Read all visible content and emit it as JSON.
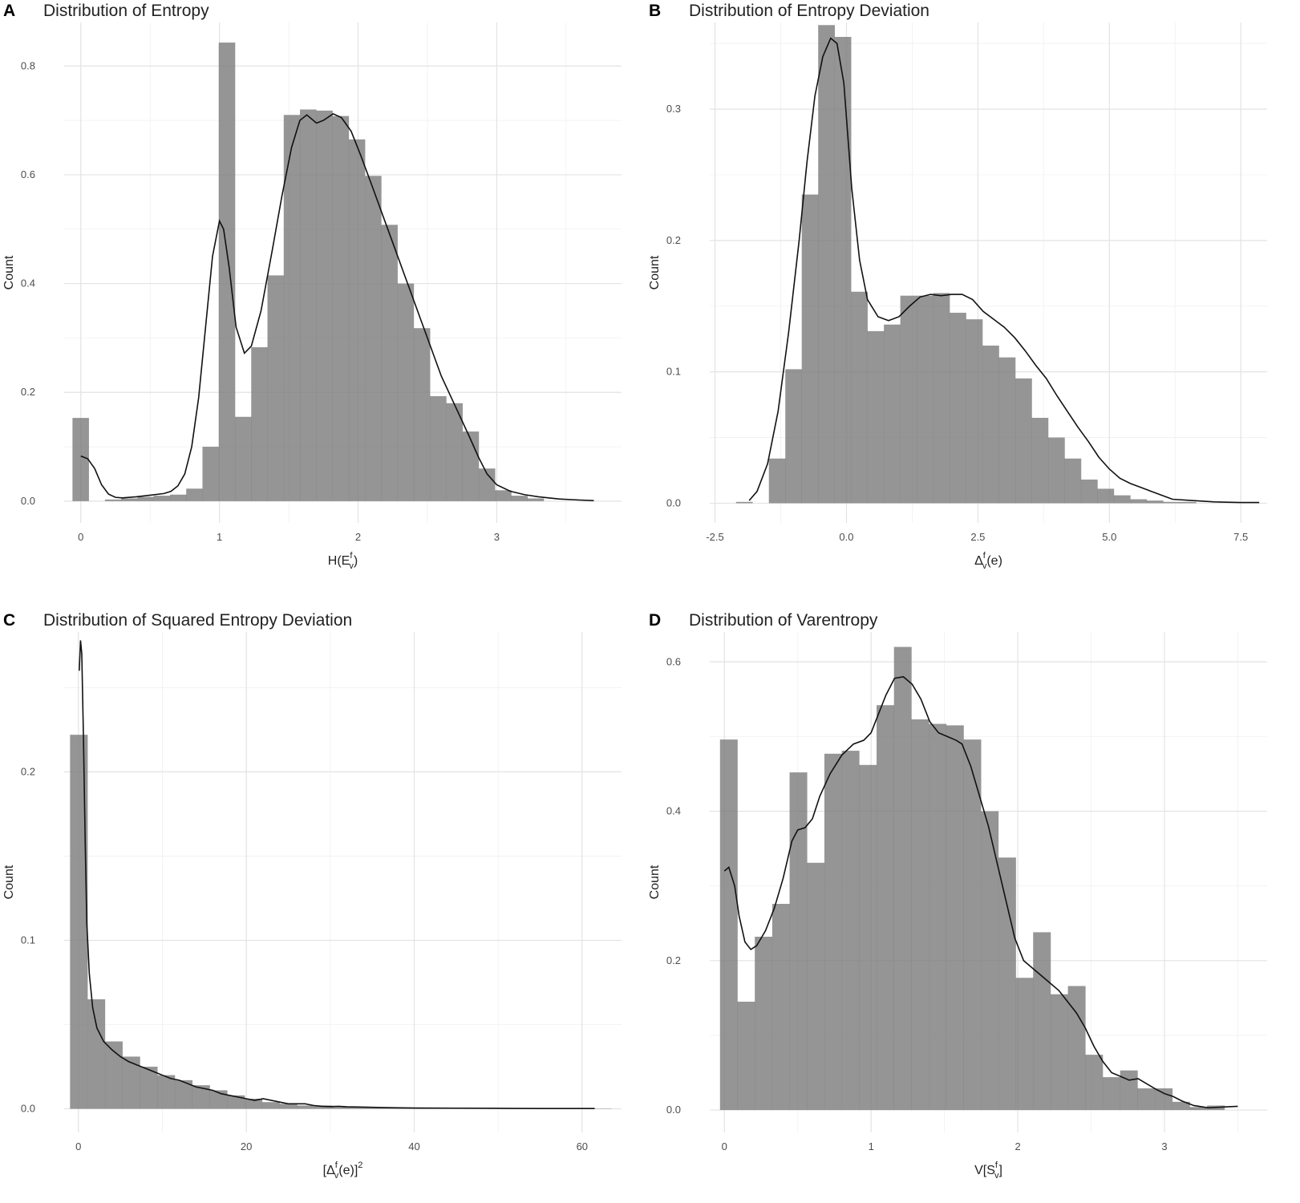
{
  "chart_data": [
    {
      "id": "A",
      "type": "bar",
      "letter": "A",
      "title": "Distribution of Entropy",
      "ylabel": "Count",
      "xlabel": {
        "base": "H(E",
        "sup": "f",
        "sub": "v",
        "tail": ")"
      },
      "xlim": [
        -0.12,
        3.9
      ],
      "ylim": [
        -0.04,
        0.88
      ],
      "xticks": [
        0,
        1,
        2,
        3
      ],
      "xtick_labels": [
        "0",
        "1",
        "2",
        "3"
      ],
      "yticks": [
        0.0,
        0.2,
        0.4,
        0.6,
        0.8
      ],
      "ytick_labels": [
        "0.0",
        "0.2",
        "0.4",
        "0.6",
        "0.8"
      ],
      "bin_start": -0.06,
      "bin_width": 0.1172,
      "values": [
        0.153,
        0,
        0.003,
        0.005,
        0.008,
        0.01,
        0.012,
        0.023,
        0.1,
        0.843,
        0.155,
        0.283,
        0.415,
        0.71,
        0.72,
        0.718,
        0.708,
        0.665,
        0.598,
        0.508,
        0.4,
        0.318,
        0.193,
        0.18,
        0.128,
        0.06,
        0.02,
        0.01,
        0.005
      ],
      "density": [
        [
          0,
          0.083
        ],
        [
          0.05,
          0.078
        ],
        [
          0.1,
          0.06
        ],
        [
          0.15,
          0.03
        ],
        [
          0.2,
          0.013
        ],
        [
          0.25,
          0.007
        ],
        [
          0.3,
          0.006
        ],
        [
          0.4,
          0.008
        ],
        [
          0.5,
          0.011
        ],
        [
          0.6,
          0.014
        ],
        [
          0.65,
          0.018
        ],
        [
          0.7,
          0.028
        ],
        [
          0.75,
          0.05
        ],
        [
          0.8,
          0.1
        ],
        [
          0.85,
          0.19
        ],
        [
          0.9,
          0.32
        ],
        [
          0.95,
          0.45
        ],
        [
          1.0,
          0.515
        ],
        [
          1.03,
          0.5
        ],
        [
          1.07,
          0.43
        ],
        [
          1.12,
          0.32
        ],
        [
          1.18,
          0.272
        ],
        [
          1.23,
          0.285
        ],
        [
          1.3,
          0.35
        ],
        [
          1.38,
          0.46
        ],
        [
          1.45,
          0.56
        ],
        [
          1.52,
          0.65
        ],
        [
          1.58,
          0.7
        ],
        [
          1.63,
          0.71
        ],
        [
          1.7,
          0.695
        ],
        [
          1.75,
          0.7
        ],
        [
          1.82,
          0.712
        ],
        [
          1.88,
          0.705
        ],
        [
          1.95,
          0.68
        ],
        [
          2.02,
          0.635
        ],
        [
          2.1,
          0.58
        ],
        [
          2.2,
          0.51
        ],
        [
          2.3,
          0.44
        ],
        [
          2.4,
          0.37
        ],
        [
          2.5,
          0.3
        ],
        [
          2.6,
          0.23
        ],
        [
          2.7,
          0.175
        ],
        [
          2.8,
          0.12
        ],
        [
          2.87,
          0.08
        ],
        [
          2.93,
          0.05
        ],
        [
          3.0,
          0.03
        ],
        [
          3.1,
          0.018
        ],
        [
          3.2,
          0.012
        ],
        [
          3.3,
          0.008
        ],
        [
          3.45,
          0.004
        ],
        [
          3.6,
          0.002
        ],
        [
          3.7,
          0.001
        ]
      ]
    },
    {
      "id": "B",
      "type": "bar",
      "letter": "B",
      "title": "Distribution of Entropy Deviation",
      "ylabel": "Count",
      "xlabel": {
        "base": "Δ",
        "sup": "f",
        "sub": "v",
        "tail": "(e)"
      },
      "xlim": [
        -2.6,
        8.0
      ],
      "ylim": [
        -0.015,
        0.366
      ],
      "xticks": [
        -2.5,
        0.0,
        2.5,
        5.0,
        7.5
      ],
      "xtick_labels": [
        "-2.5",
        "0.0",
        "2.5",
        "5.0",
        "7.5"
      ],
      "yticks": [
        0.0,
        0.1,
        0.2,
        0.3
      ],
      "ytick_labels": [
        "0.0",
        "0.1",
        "0.2",
        "0.3"
      ],
      "bin_start": -2.1,
      "bin_width": 0.3124,
      "values": [
        0.001,
        0.0,
        0.034,
        0.102,
        0.235,
        0.364,
        0.355,
        0.161,
        0.131,
        0.136,
        0.158,
        0.158,
        0.16,
        0.145,
        0.14,
        0.12,
        0.111,
        0.095,
        0.065,
        0.05,
        0.034,
        0.018,
        0.011,
        0.006,
        0.003,
        0.002,
        0.001,
        0.001,
        0.0
      ],
      "density": [
        [
          -1.85,
          0.002
        ],
        [
          -1.7,
          0.009
        ],
        [
          -1.5,
          0.03
        ],
        [
          -1.3,
          0.07
        ],
        [
          -1.1,
          0.13
        ],
        [
          -0.9,
          0.2
        ],
        [
          -0.75,
          0.26
        ],
        [
          -0.6,
          0.31
        ],
        [
          -0.45,
          0.34
        ],
        [
          -0.3,
          0.354
        ],
        [
          -0.18,
          0.35
        ],
        [
          -0.05,
          0.32
        ],
        [
          0.1,
          0.24
        ],
        [
          0.25,
          0.185
        ],
        [
          0.4,
          0.155
        ],
        [
          0.6,
          0.142
        ],
        [
          0.8,
          0.139
        ],
        [
          1.0,
          0.142
        ],
        [
          1.2,
          0.15
        ],
        [
          1.4,
          0.157
        ],
        [
          1.6,
          0.159
        ],
        [
          1.8,
          0.158
        ],
        [
          2.0,
          0.159
        ],
        [
          2.2,
          0.159
        ],
        [
          2.4,
          0.155
        ],
        [
          2.6,
          0.146
        ],
        [
          2.8,
          0.14
        ],
        [
          3.0,
          0.134
        ],
        [
          3.2,
          0.126
        ],
        [
          3.4,
          0.116
        ],
        [
          3.6,
          0.105
        ],
        [
          3.8,
          0.095
        ],
        [
          4.0,
          0.082
        ],
        [
          4.2,
          0.07
        ],
        [
          4.4,
          0.058
        ],
        [
          4.6,
          0.047
        ],
        [
          4.8,
          0.035
        ],
        [
          5.0,
          0.026
        ],
        [
          5.2,
          0.019
        ],
        [
          5.4,
          0.015
        ],
        [
          5.6,
          0.012
        ],
        [
          5.8,
          0.009
        ],
        [
          6.0,
          0.006
        ],
        [
          6.2,
          0.003
        ],
        [
          6.6,
          0.002
        ],
        [
          7.0,
          0.001
        ],
        [
          7.5,
          0.0005
        ],
        [
          7.85,
          0.0005
        ]
      ]
    },
    {
      "id": "C",
      "type": "bar",
      "letter": "C",
      "title": "Distribution of Squared Entropy Deviation",
      "ylabel": "Count",
      "xlabel": {
        "base": "[Δ",
        "sup": "f",
        "sub": "v",
        "tail": "(e)]",
        "tail_sup": "2"
      },
      "xlim": [
        -1.7,
        64.7
      ],
      "ylim": [
        -0.014,
        0.283
      ],
      "xticks": [
        0,
        20,
        40,
        60
      ],
      "xtick_labels": [
        "0",
        "20",
        "40",
        "60"
      ],
      "yticks": [
        0.0,
        0.1,
        0.2
      ],
      "ytick_labels": [
        "0.0",
        "0.1",
        "0.2"
      ],
      "bin_start": -1.0,
      "bin_width": 2.08,
      "values": [
        0.222,
        0.065,
        0.04,
        0.031,
        0.025,
        0.02,
        0.017,
        0.014,
        0.011,
        0.008,
        0.006,
        0.004,
        0.003,
        0.002,
        0.002,
        0.001,
        0.001,
        0.001,
        0.001,
        0.0005,
        0.0005,
        0.0005,
        0.0005,
        0.0005,
        0.0003,
        0.0003,
        0.0003,
        0.0003,
        0.0002,
        0.0002,
        0.0002
      ],
      "density": [
        [
          0.1,
          0.26
        ],
        [
          0.25,
          0.278
        ],
        [
          0.4,
          0.27
        ],
        [
          0.6,
          0.22
        ],
        [
          0.8,
          0.16
        ],
        [
          1.0,
          0.11
        ],
        [
          1.3,
          0.08
        ],
        [
          1.7,
          0.06
        ],
        [
          2.2,
          0.048
        ],
        [
          3,
          0.04
        ],
        [
          4,
          0.035
        ],
        [
          5,
          0.031
        ],
        [
          6,
          0.028
        ],
        [
          7,
          0.026
        ],
        [
          8,
          0.024
        ],
        [
          9,
          0.022
        ],
        [
          10,
          0.02
        ],
        [
          11,
          0.018
        ],
        [
          12,
          0.017
        ],
        [
          13,
          0.015
        ],
        [
          14,
          0.013
        ],
        [
          15,
          0.012
        ],
        [
          16,
          0.011
        ],
        [
          17,
          0.009
        ],
        [
          18,
          0.008
        ],
        [
          19,
          0.007
        ],
        [
          20,
          0.006
        ],
        [
          21,
          0.005
        ],
        [
          22,
          0.006
        ],
        [
          23,
          0.005
        ],
        [
          24,
          0.004
        ],
        [
          25,
          0.003
        ],
        [
          26,
          0.003
        ],
        [
          27,
          0.003
        ],
        [
          28,
          0.002
        ],
        [
          29,
          0.0015
        ],
        [
          30,
          0.0013
        ],
        [
          31,
          0.0015
        ],
        [
          32,
          0.0012
        ],
        [
          34,
          0.001
        ],
        [
          36,
          0.0008
        ],
        [
          38,
          0.0006
        ],
        [
          40,
          0.0005
        ],
        [
          45,
          0.0004
        ],
        [
          50,
          0.0003
        ],
        [
          55,
          0.0002
        ],
        [
          61.5,
          0.0002
        ]
      ]
    },
    {
      "id": "D",
      "type": "bar",
      "letter": "D",
      "title": "Distribution of Varentropy",
      "ylabel": "Count",
      "xlabel": {
        "base": "V[S",
        "sup": "f",
        "sub": "v",
        "tail": "]"
      },
      "xlim": [
        -0.1,
        3.7
      ],
      "ylim": [
        -0.03,
        0.64
      ],
      "xticks": [
        0,
        1,
        2,
        3
      ],
      "xtick_labels": [
        "0",
        "1",
        "2",
        "3"
      ],
      "yticks": [
        0.0,
        0.2,
        0.4,
        0.6
      ],
      "ytick_labels": [
        "0.0",
        "0.2",
        "0.4",
        "0.6"
      ],
      "bin_start": -0.03,
      "bin_width": 0.1186,
      "values": [
        0.496,
        0.145,
        0.232,
        0.276,
        0.452,
        0.331,
        0.477,
        0.481,
        0.462,
        0.542,
        0.62,
        0.523,
        0.517,
        0.515,
        0.496,
        0.4,
        0.338,
        0.177,
        0.238,
        0.155,
        0.166,
        0.074,
        0.044,
        0.053,
        0.029,
        0.029,
        0.011,
        0.004,
        0.006
      ],
      "density": [
        [
          0,
          0.32
        ],
        [
          0.03,
          0.325
        ],
        [
          0.07,
          0.3
        ],
        [
          0.1,
          0.26
        ],
        [
          0.14,
          0.225
        ],
        [
          0.18,
          0.215
        ],
        [
          0.22,
          0.22
        ],
        [
          0.28,
          0.24
        ],
        [
          0.34,
          0.27
        ],
        [
          0.4,
          0.31
        ],
        [
          0.46,
          0.36
        ],
        [
          0.5,
          0.375
        ],
        [
          0.55,
          0.378
        ],
        [
          0.6,
          0.39
        ],
        [
          0.65,
          0.42
        ],
        [
          0.72,
          0.45
        ],
        [
          0.8,
          0.475
        ],
        [
          0.88,
          0.49
        ],
        [
          0.95,
          0.495
        ],
        [
          1.0,
          0.505
        ],
        [
          1.05,
          0.53
        ],
        [
          1.1,
          0.555
        ],
        [
          1.16,
          0.578
        ],
        [
          1.22,
          0.58
        ],
        [
          1.28,
          0.57
        ],
        [
          1.34,
          0.55
        ],
        [
          1.4,
          0.52
        ],
        [
          1.46,
          0.505
        ],
        [
          1.52,
          0.5
        ],
        [
          1.58,
          0.495
        ],
        [
          1.62,
          0.49
        ],
        [
          1.68,
          0.46
        ],
        [
          1.74,
          0.42
        ],
        [
          1.8,
          0.38
        ],
        [
          1.86,
          0.33
        ],
        [
          1.92,
          0.28
        ],
        [
          1.98,
          0.23
        ],
        [
          2.04,
          0.2
        ],
        [
          2.1,
          0.19
        ],
        [
          2.16,
          0.18
        ],
        [
          2.22,
          0.17
        ],
        [
          2.28,
          0.16
        ],
        [
          2.34,
          0.145
        ],
        [
          2.4,
          0.13
        ],
        [
          2.46,
          0.11
        ],
        [
          2.52,
          0.085
        ],
        [
          2.58,
          0.065
        ],
        [
          2.64,
          0.05
        ],
        [
          2.7,
          0.045
        ],
        [
          2.76,
          0.04
        ],
        [
          2.82,
          0.042
        ],
        [
          2.88,
          0.035
        ],
        [
          2.94,
          0.028
        ],
        [
          3.0,
          0.022
        ],
        [
          3.06,
          0.018
        ],
        [
          3.12,
          0.012
        ],
        [
          3.2,
          0.006
        ],
        [
          3.3,
          0.003
        ],
        [
          3.4,
          0.004
        ],
        [
          3.5,
          0.005
        ]
      ]
    }
  ]
}
